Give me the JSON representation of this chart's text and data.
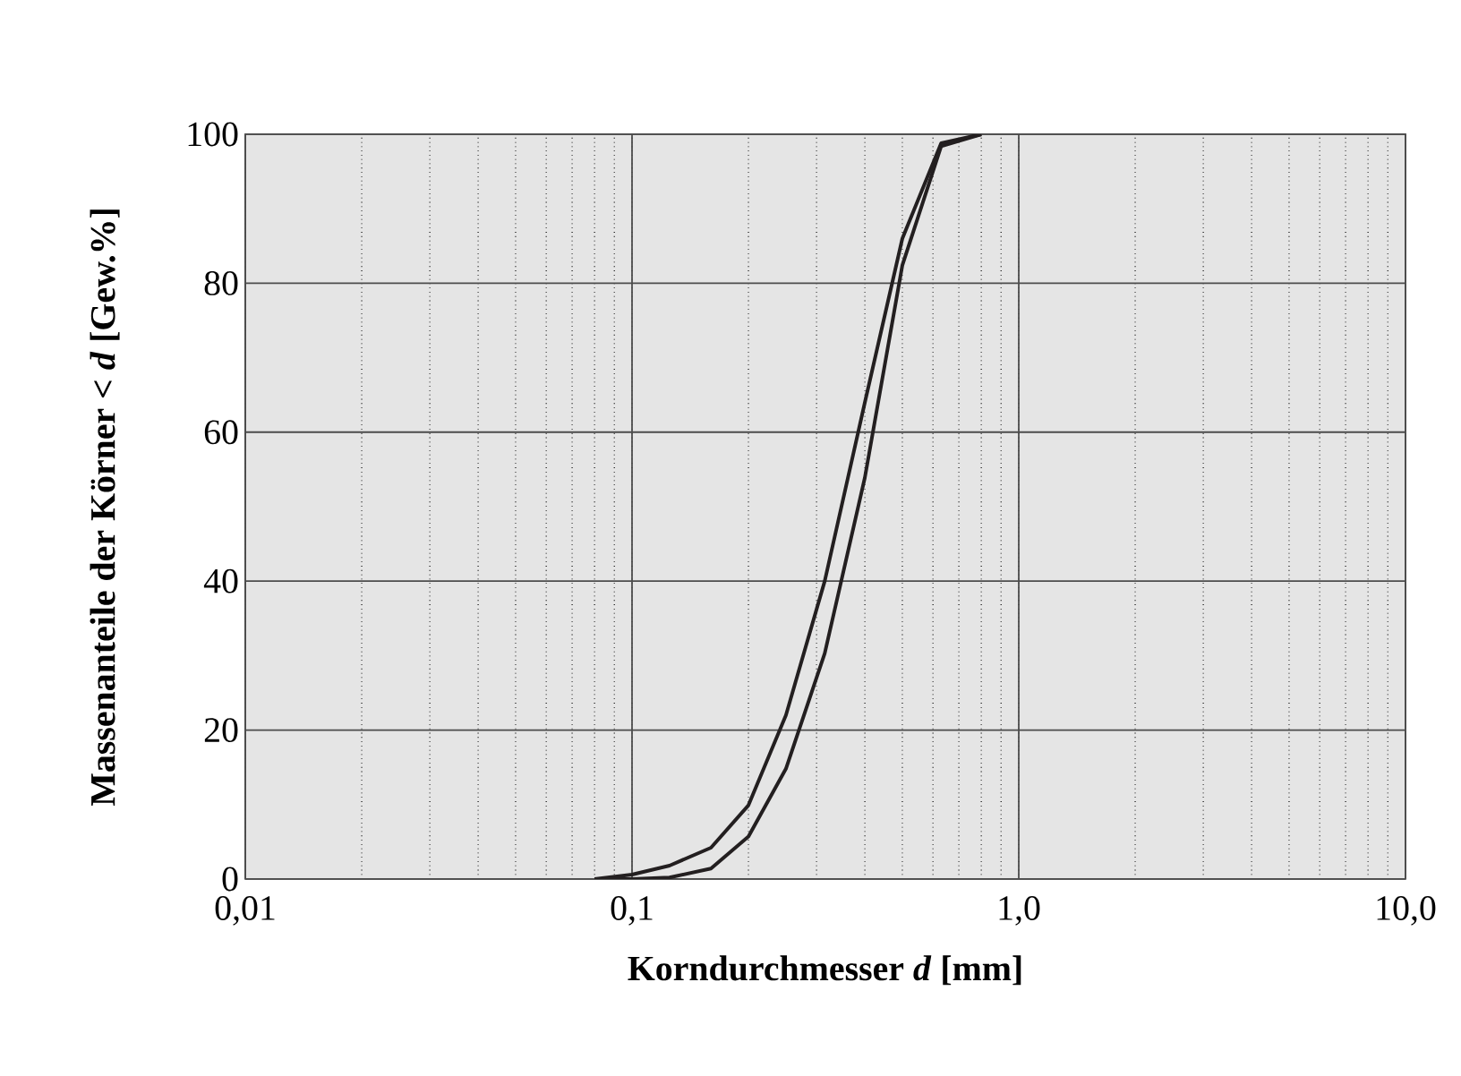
{
  "chart_data": {
    "type": "line",
    "xlabel": "Korndurchmesser *d*   [mm]",
    "ylabel": "Massenanteile der Körner < *d*   [Gew.%]",
    "log": "x",
    "grid": true,
    "marker": "none",
    "line_style": "solid",
    "xlim": [
      0.01,
      10
    ],
    "xticks": [
      {
        "value": 0.01,
        "label": "0,01"
      },
      {
        "value": 0.1,
        "label": "0,1"
      },
      {
        "value": 1,
        "label": "1,0"
      },
      {
        "value": 10,
        "label": "10,0"
      }
    ],
    "ylim": [
      0,
      100
    ],
    "yticks": [
      0,
      20,
      40,
      60,
      80,
      100
    ],
    "series": [
      {
        "color": "#231f20",
        "x": [
          0.08,
          0.1,
          0.125,
          0.16,
          0.2,
          0.25,
          0.315,
          0.4,
          0.5,
          0.63,
          0.8
        ],
        "values": [
          0,
          0.6,
          1.8,
          4.2,
          9.9,
          22,
          40,
          64,
          86,
          98.8,
          100
        ]
      },
      {
        "color": "#231f20",
        "x": [
          0.08,
          0.1,
          0.125,
          0.16,
          0.2,
          0.25,
          0.315,
          0.4,
          0.5,
          0.63,
          0.8
        ],
        "values": [
          0,
          0,
          0.2,
          1.4,
          5.7,
          14.8,
          30.3,
          53.9,
          82.4,
          98.4,
          100
        ]
      }
    ]
  }
}
